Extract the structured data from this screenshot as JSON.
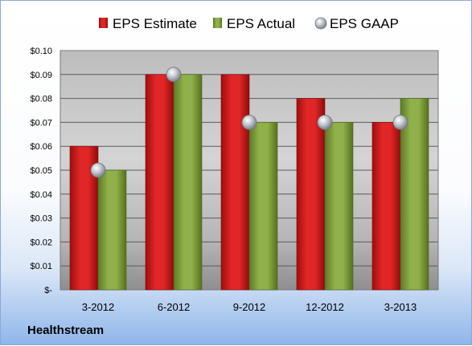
{
  "company": "Healthstream",
  "colors": {
    "estimate": "#d01818",
    "actual": "#7fa03c",
    "gaap": "#b8bcc4"
  },
  "chart_data": {
    "type": "bar",
    "title": "",
    "xlabel": "",
    "ylabel": "",
    "legend_position": "top",
    "grid": true,
    "categories": [
      "3-2012",
      "6-2012",
      "9-2012",
      "12-2012",
      "3-2013"
    ],
    "yticks": [
      "$-",
      "$0.01",
      "$0.02",
      "$0.03",
      "$0.04",
      "$0.05",
      "$0.06",
      "$0.07",
      "$0.08",
      "$0.09",
      "$0.10"
    ],
    "ylim": [
      0,
      0.1
    ],
    "series": [
      {
        "name": "EPS Estimate",
        "kind": "bar",
        "values": [
          0.06,
          0.09,
          0.09,
          0.08,
          0.07
        ]
      },
      {
        "name": "EPS Actual",
        "kind": "bar",
        "values": [
          0.05,
          0.09,
          0.07,
          0.07,
          0.08
        ]
      },
      {
        "name": "EPS GAAP",
        "kind": "marker",
        "values": [
          0.05,
          0.09,
          0.07,
          0.07,
          0.07
        ]
      }
    ]
  }
}
